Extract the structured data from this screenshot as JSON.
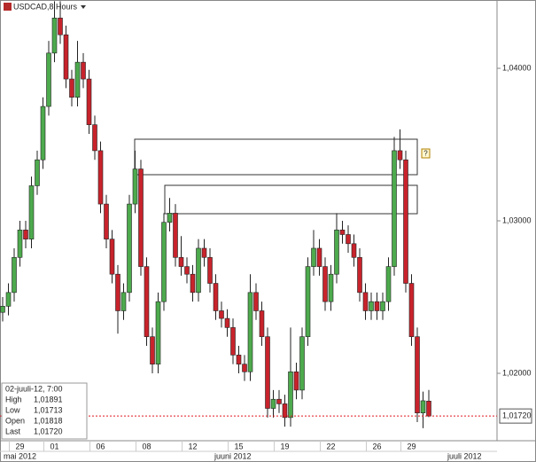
{
  "chart_data": {
    "type": "candlestick",
    "title": "USDCAD,8 Hours",
    "categories": [
      null,
      null,
      null,
      "29",
      null,
      null,
      null,
      null,
      null,
      "01",
      null,
      null,
      null,
      null,
      null,
      null,
      null,
      "06",
      null,
      null,
      null,
      null,
      null,
      null,
      null,
      "08",
      null,
      null,
      null,
      null,
      null,
      null,
      null,
      "12",
      null,
      null,
      null,
      null,
      null,
      null,
      null,
      "15",
      null,
      null,
      null,
      null,
      null,
      null,
      null,
      "19",
      null,
      null,
      null,
      null,
      null,
      null,
      null,
      "22",
      null,
      null,
      null,
      null,
      null,
      null,
      null,
      "26",
      null,
      null,
      null,
      null,
      null,
      "29",
      null,
      null,
      null
    ],
    "month_labels": [
      "mai 2012",
      "juuni 2012",
      "juuli 2012"
    ],
    "open": [
      1.024,
      1.0244,
      1.0253,
      1.0276,
      1.0294,
      1.0288,
      1.0323,
      1.034,
      1.0375,
      1.041,
      1.0433,
      1.0422,
      1.0393,
      1.0381,
      1.0404,
      1.0393,
      1.0363,
      1.0346,
      1.0311,
      1.0288,
      1.0265,
      1.0241,
      1.0253,
      1.0311,
      1.0334,
      1.027,
      1.0224,
      1.0206,
      1.0247,
      1.0299,
      1.0305,
      1.0276,
      1.027,
      1.0265,
      1.0253,
      1.0282,
      1.0276,
      1.0259,
      1.0241,
      1.0236,
      1.023,
      1.0212,
      1.0206,
      1.0201,
      1.0253,
      1.0241,
      1.0224,
      1.0177,
      1.0183,
      1.018,
      1.0171,
      1.0201,
      1.0189,
      1.0224,
      1.027,
      1.0282,
      1.027,
      1.0247,
      1.0265,
      1.0294,
      1.0291,
      1.0285,
      1.0276,
      1.0253,
      1.0241,
      1.0247,
      1.0241,
      1.0247,
      1.027,
      1.0346,
      1.034,
      1.0259,
      1.0224,
      1.0174,
      1.01818
    ],
    "high": [
      1.025,
      1.0259,
      1.0282,
      1.03,
      1.03,
      1.0329,
      1.0346,
      1.0381,
      1.0418,
      1.0444,
      1.0444,
      1.0428,
      1.0399,
      1.0418,
      1.041,
      1.0399,
      1.0369,
      1.0352,
      1.0317,
      1.0294,
      1.0271,
      1.0259,
      1.0317,
      1.0346,
      1.034,
      1.0276,
      1.023,
      1.0253,
      1.0305,
      1.0315,
      1.0311,
      1.029,
      1.0276,
      1.0271,
      1.0288,
      1.0288,
      1.0282,
      1.0265,
      1.0247,
      1.0242,
      1.0236,
      1.0218,
      1.0212,
      1.0265,
      1.0259,
      1.0247,
      1.023,
      1.0189,
      1.0189,
      1.0186,
      1.023,
      1.0207,
      1.023,
      1.0276,
      1.0294,
      1.0288,
      1.0276,
      1.0271,
      1.0305,
      1.03,
      1.0297,
      1.0291,
      1.0282,
      1.0259,
      1.0253,
      1.0253,
      1.0253,
      1.0276,
      1.0355,
      1.036,
      1.0346,
      1.0265,
      1.023,
      1.0188,
      1.01891
    ],
    "low": [
      1.0234,
      1.0238,
      1.0247,
      1.027,
      1.0282,
      1.0282,
      1.0317,
      1.0334,
      1.0369,
      1.0404,
      1.0416,
      1.0387,
      1.0375,
      1.0375,
      1.0387,
      1.0357,
      1.034,
      1.0305,
      1.0282,
      1.0259,
      1.0226,
      1.0235,
      1.0247,
      1.0305,
      1.0264,
      1.0218,
      1.02,
      1.02,
      1.0241,
      1.0293,
      1.027,
      1.0264,
      1.0259,
      1.0247,
      1.0247,
      1.027,
      1.0253,
      1.0235,
      1.023,
      1.0224,
      1.0206,
      1.02,
      1.0195,
      1.0195,
      1.0235,
      1.0218,
      1.0171,
      1.0171,
      1.0174,
      1.0165,
      1.0165,
      1.0183,
      1.0183,
      1.0218,
      1.0264,
      1.0264,
      1.0241,
      1.0241,
      1.0259,
      1.0285,
      1.0279,
      1.027,
      1.0247,
      1.0235,
      1.0235,
      1.0235,
      1.0235,
      1.0241,
      1.0264,
      1.0334,
      1.0253,
      1.0218,
      1.0168,
      1.0164,
      1.01713
    ],
    "close": [
      1.0244,
      1.0253,
      1.0276,
      1.0294,
      1.0288,
      1.0323,
      1.034,
      1.0375,
      1.041,
      1.0433,
      1.0422,
      1.0393,
      1.0381,
      1.0404,
      1.0393,
      1.0363,
      1.0346,
      1.0311,
      1.0288,
      1.0265,
      1.0241,
      1.0253,
      1.0311,
      1.0334,
      1.027,
      1.0224,
      1.0206,
      1.0247,
      1.0299,
      1.0305,
      1.0276,
      1.027,
      1.0265,
      1.0253,
      1.0282,
      1.0276,
      1.0259,
      1.0241,
      1.0236,
      1.023,
      1.0212,
      1.0206,
      1.0201,
      1.0253,
      1.0241,
      1.0224,
      1.0177,
      1.0183,
      1.018,
      1.0171,
      1.0201,
      1.0189,
      1.0224,
      1.027,
      1.0282,
      1.027,
      1.0247,
      1.0265,
      1.0294,
      1.0291,
      1.0285,
      1.0276,
      1.0253,
      1.0241,
      1.0247,
      1.0241,
      1.0247,
      1.027,
      1.0346,
      1.034,
      1.0259,
      1.0224,
      1.0174,
      1.0182,
      1.0172
    ],
    "up_color": "#4daa4d",
    "down_color": "#c8232c",
    "ylim": [
      1.01558,
      1.04448
    ],
    "yticks": [
      {
        "value": 1.02,
        "label": "1,02000"
      },
      {
        "value": 1.03,
        "label": "1,03000"
      },
      {
        "value": 1.04,
        "label": "1,04000"
      }
    ],
    "last_price": {
      "value": 1.0172,
      "label": "1,01720"
    },
    "last_price_color": "#e0161e",
    "info_box": {
      "date": "02-juuli-12, 7:00",
      "rows": [
        [
          "High",
          "1,01891"
        ],
        [
          "Low",
          "1,01713"
        ],
        [
          "Open",
          "1,01818"
        ],
        [
          "Last",
          "1,01720"
        ]
      ]
    },
    "marker": "?"
  }
}
